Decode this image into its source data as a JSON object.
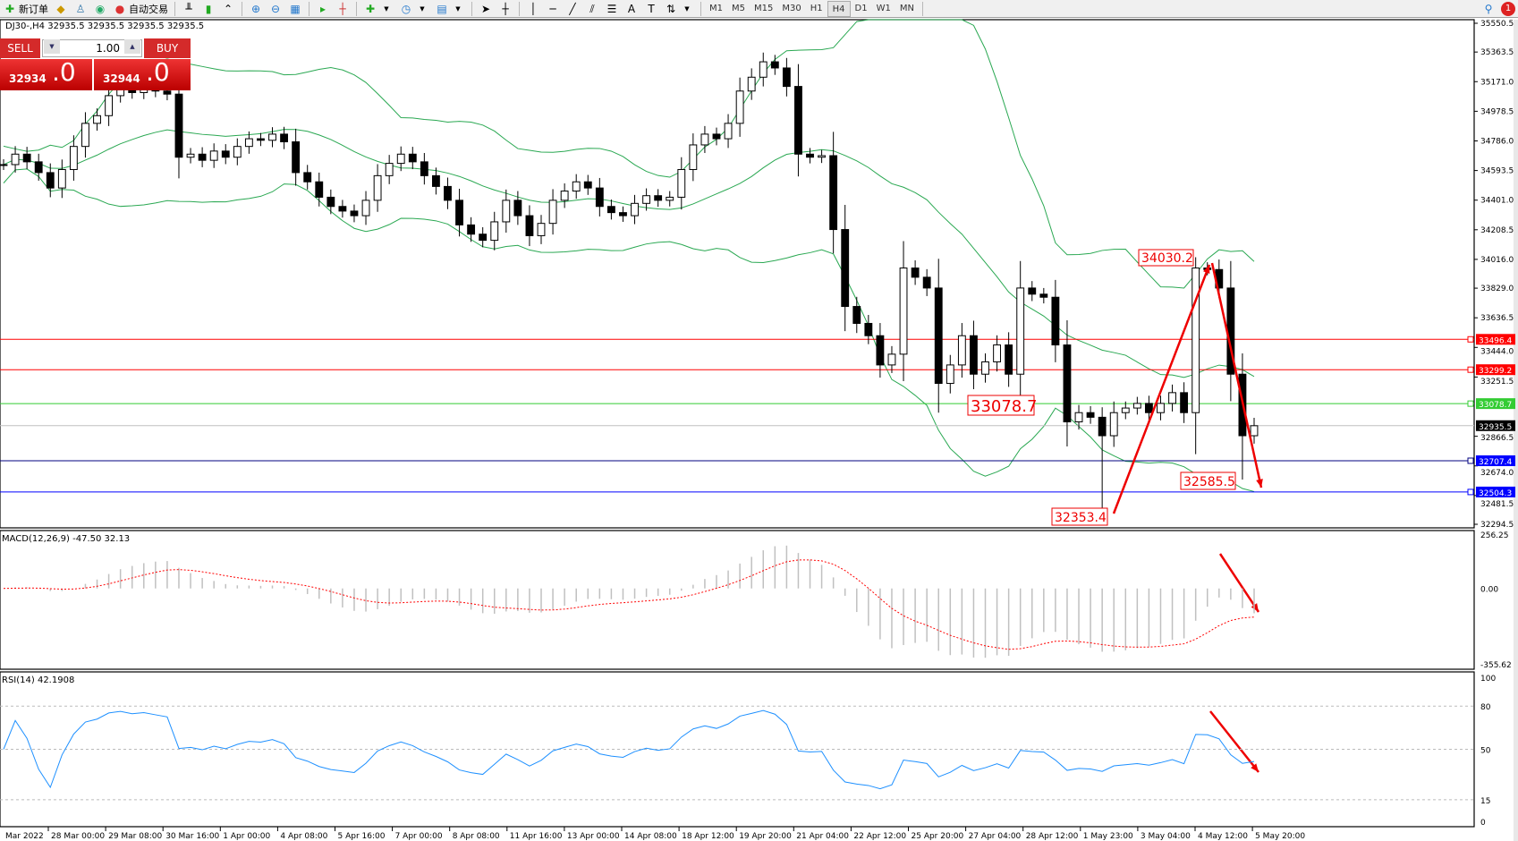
{
  "toolbar": {
    "new_order": "新订单",
    "auto_trading": "自动交易",
    "timeframes": [
      "M1",
      "M5",
      "M15",
      "M30",
      "H1",
      "H4",
      "D1",
      "W1",
      "MN"
    ],
    "active_timeframe": "H4",
    "notification_count": "1"
  },
  "chart": {
    "title": "DJ30-,H4  32935.5 32935.5 32935.5 32935.5",
    "trade_panel": {
      "sell_label": "SELL",
      "buy_label": "BUY",
      "lot": "1.00",
      "sell_price_small": "32934",
      "sell_price_big": ".0",
      "buy_price_small": "32944",
      "buy_price_big": ".0"
    }
  },
  "chart_data": [
    {
      "type": "candlestick",
      "symbol": "DJ30-",
      "timeframe": "H4",
      "ylim": [
        32294.5,
        35550.5
      ],
      "y_ticks": [
        "35550.5",
        "35363.5",
        "35171.0",
        "34978.5",
        "34786.0",
        "34593.5",
        "34401.0",
        "34208.5",
        "34016.0",
        "33829.0",
        "33636.5",
        "33444.0",
        "33251.5",
        "32866.5",
        "32674.0",
        "32481.5",
        "32294.5"
      ],
      "x_ticks": [
        "Mar 2022",
        "28 Mar 00:00",
        "29 Mar 08:00",
        "30 Mar 16:00",
        "1 Apr 00:00",
        "4 Apr 08:00",
        "5 Apr 16:00",
        "7 Apr 00:00",
        "8 Apr 08:00",
        "11 Apr 16:00",
        "13 Apr 00:00",
        "14 Apr 08:00",
        "18 Apr 12:00",
        "19 Apr 20:00",
        "21 Apr 04:00",
        "22 Apr 12:00",
        "25 Apr 20:00",
        "27 Apr 04:00",
        "28 Apr 12:00",
        "1 May 23:00",
        "3 May 04:00",
        "4 May 12:00",
        "5 May 20:00"
      ],
      "close": [
        34632,
        34700,
        34650,
        34580,
        34480,
        34600,
        34750,
        34900,
        34950,
        35080,
        35120,
        35100,
        35130,
        35110,
        35090,
        34680,
        34700,
        34660,
        34720,
        34680,
        34750,
        34800,
        34790,
        34830,
        34780,
        34580,
        34520,
        34420,
        34360,
        34330,
        34300,
        34400,
        34560,
        34640,
        34700,
        34650,
        34560,
        34490,
        34400,
        34240,
        34180,
        34140,
        34260,
        34400,
        34300,
        34170,
        34250,
        34400,
        34460,
        34520,
        34480,
        34360,
        34320,
        34300,
        34380,
        34430,
        34400,
        34420,
        34600,
        34760,
        34830,
        34800,
        34900,
        35110,
        35200,
        35300,
        35260,
        35140,
        34700,
        34680,
        34690,
        34210,
        33710,
        33600,
        33520,
        33330,
        33400,
        33960,
        33900,
        33830,
        33210,
        33330,
        33520,
        33270,
        33350,
        33460,
        33270,
        33830,
        33790,
        33770,
        33460,
        32960,
        33020,
        32990,
        32870,
        33020,
        33050,
        33080,
        33020,
        33080,
        33150,
        33020,
        33960,
        33950,
        33830,
        33270,
        32870,
        32935
      ],
      "indicator": "Bollinger Bands",
      "horizontal_lines": [
        {
          "value": "33496.4",
          "color": "#ff0000"
        },
        {
          "value": "33299.2",
          "color": "#ff0000"
        },
        {
          "value": "33078.7",
          "color": "#33cc33"
        },
        {
          "value": "32935.5",
          "color": "#c0c0c0",
          "label_bg": "#000000"
        },
        {
          "value": "32707.4",
          "color": "#000080",
          "label_bg": "#0000ff"
        },
        {
          "value": "32504.3",
          "color": "#0000ff"
        }
      ],
      "annotations": [
        "34030.2",
        "33078.7",
        "32353.4",
        "32585.5"
      ]
    },
    {
      "type": "bar",
      "title": "MACD(12,26,9) -47.50 32.13",
      "y_ticks": [
        "256.25",
        "0.00",
        "-355.62"
      ],
      "ylim": [
        -355.62,
        256.25
      ],
      "signal_color": "#ff0000",
      "histogram_color": "#c0c0c0"
    },
    {
      "type": "line",
      "title": "RSI(14) 42.1908",
      "y_ticks": [
        "100",
        "80",
        "50",
        "15",
        "0"
      ],
      "ylim": [
        0,
        100
      ],
      "levels": [
        80,
        50,
        15
      ],
      "color": "#1e90ff"
    }
  ]
}
